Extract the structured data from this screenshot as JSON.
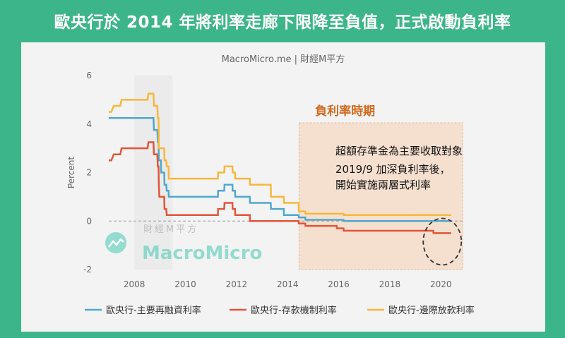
{
  "banner": {
    "title": "歐央行於 2014 年將利率走廊下限降至負值，正式啟動負利率"
  },
  "watermark": {
    "small": "財經M平方",
    "big": "MacroMicro"
  },
  "colors": {
    "background": "#3cb58a",
    "main_refinancing": "#4fa8cc",
    "deposit_facility": "#e1553a",
    "marginal_lending": "#f6b73c",
    "period_fill": "#f5d9c4",
    "period_border": "#e3b89a",
    "period_title": "#d2691e"
  },
  "chart_data": {
    "type": "line",
    "source": "MacroMicro.me | 財經M平方",
    "ylabel": "Percent",
    "xlabel": "",
    "xlim": [
      2007.0,
      2020.85
    ],
    "ylim": [
      -2,
      6
    ],
    "x_ticks": [
      2008,
      2010,
      2012,
      2014,
      2016,
      2018,
      2020
    ],
    "y_ticks": [
      -2,
      0,
      2,
      4,
      6
    ],
    "legend_position": "bottom",
    "zero_line": "dashed",
    "series": [
      {
        "name": "歐央行-主要再融資利率",
        "color_key": "main_refinancing",
        "points": [
          [
            2007.0,
            4.25
          ],
          [
            2008.75,
            4.25
          ],
          [
            2008.77,
            3.75
          ],
          [
            2008.9,
            3.75
          ],
          [
            2008.92,
            3.25
          ],
          [
            2008.95,
            3.25
          ],
          [
            2008.96,
            2.5
          ],
          [
            2009.04,
            2.5
          ],
          [
            2009.05,
            2.0
          ],
          [
            2009.17,
            2.0
          ],
          [
            2009.18,
            1.5
          ],
          [
            2009.25,
            1.5
          ],
          [
            2009.27,
            1.25
          ],
          [
            2009.34,
            1.25
          ],
          [
            2009.35,
            1.0
          ],
          [
            2011.27,
            1.0
          ],
          [
            2011.28,
            1.25
          ],
          [
            2011.52,
            1.25
          ],
          [
            2011.53,
            1.5
          ],
          [
            2011.84,
            1.5
          ],
          [
            2011.85,
            1.25
          ],
          [
            2011.94,
            1.25
          ],
          [
            2011.95,
            1.0
          ],
          [
            2012.52,
            1.0
          ],
          [
            2012.53,
            0.75
          ],
          [
            2013.34,
            0.75
          ],
          [
            2013.35,
            0.5
          ],
          [
            2013.85,
            0.5
          ],
          [
            2013.86,
            0.25
          ],
          [
            2014.43,
            0.25
          ],
          [
            2014.44,
            0.15
          ],
          [
            2014.69,
            0.15
          ],
          [
            2014.7,
            0.05
          ],
          [
            2016.19,
            0.05
          ],
          [
            2016.2,
            0.0
          ],
          [
            2020.4,
            0.0
          ]
        ]
      },
      {
        "name": "歐央行-存款機制利率",
        "color_key": "deposit_facility",
        "points": [
          [
            2007.0,
            2.5
          ],
          [
            2007.1,
            2.5
          ],
          [
            2007.2,
            2.75
          ],
          [
            2007.45,
            2.75
          ],
          [
            2007.5,
            3.0
          ],
          [
            2008.52,
            3.0
          ],
          [
            2008.55,
            3.25
          ],
          [
            2008.75,
            3.25
          ],
          [
            2008.77,
            2.75
          ],
          [
            2008.9,
            2.75
          ],
          [
            2008.92,
            2.25
          ],
          [
            2008.95,
            2.25
          ],
          [
            2008.96,
            1.5
          ],
          [
            2008.98,
            1.0
          ],
          [
            2009.04,
            1.0
          ],
          [
            2009.05,
            1.0
          ],
          [
            2009.17,
            1.0
          ],
          [
            2009.18,
            0.5
          ],
          [
            2009.25,
            0.5
          ],
          [
            2009.27,
            0.25
          ],
          [
            2011.27,
            0.25
          ],
          [
            2011.28,
            0.5
          ],
          [
            2011.52,
            0.5
          ],
          [
            2011.53,
            0.75
          ],
          [
            2011.84,
            0.75
          ],
          [
            2011.85,
            0.5
          ],
          [
            2011.94,
            0.5
          ],
          [
            2011.95,
            0.25
          ],
          [
            2012.52,
            0.25
          ],
          [
            2012.53,
            0.0
          ],
          [
            2014.43,
            0.0
          ],
          [
            2014.44,
            -0.1
          ],
          [
            2014.69,
            -0.1
          ],
          [
            2014.7,
            -0.2
          ],
          [
            2015.92,
            -0.2
          ],
          [
            2015.93,
            -0.3
          ],
          [
            2016.19,
            -0.3
          ],
          [
            2016.2,
            -0.4
          ],
          [
            2019.7,
            -0.4
          ],
          [
            2019.71,
            -0.5
          ],
          [
            2020.4,
            -0.5
          ]
        ]
      },
      {
        "name": "歐央行-邊際放款利率",
        "color_key": "marginal_lending",
        "points": [
          [
            2007.0,
            4.5
          ],
          [
            2007.1,
            4.5
          ],
          [
            2007.2,
            4.75
          ],
          [
            2007.45,
            4.75
          ],
          [
            2007.5,
            5.0
          ],
          [
            2008.52,
            5.0
          ],
          [
            2008.55,
            5.25
          ],
          [
            2008.75,
            5.25
          ],
          [
            2008.77,
            4.75
          ],
          [
            2008.9,
            4.75
          ],
          [
            2008.92,
            4.25
          ],
          [
            2008.95,
            4.25
          ],
          [
            2008.96,
            3.0
          ],
          [
            2009.17,
            3.0
          ],
          [
            2009.18,
            2.5
          ],
          [
            2009.25,
            2.5
          ],
          [
            2009.27,
            2.25
          ],
          [
            2009.34,
            2.25
          ],
          [
            2009.35,
            1.75
          ],
          [
            2011.27,
            1.75
          ],
          [
            2011.28,
            2.0
          ],
          [
            2011.52,
            2.0
          ],
          [
            2011.53,
            2.25
          ],
          [
            2011.84,
            2.25
          ],
          [
            2011.85,
            2.0
          ],
          [
            2011.94,
            2.0
          ],
          [
            2011.95,
            1.75
          ],
          [
            2012.52,
            1.75
          ],
          [
            2012.53,
            1.5
          ],
          [
            2013.34,
            1.5
          ],
          [
            2013.35,
            1.0
          ],
          [
            2013.85,
            1.0
          ],
          [
            2013.86,
            0.75
          ],
          [
            2014.43,
            0.75
          ],
          [
            2014.44,
            0.4
          ],
          [
            2014.69,
            0.4
          ],
          [
            2014.7,
            0.3
          ],
          [
            2015.92,
            0.3
          ],
          [
            2015.93,
            0.3
          ],
          [
            2016.19,
            0.3
          ],
          [
            2016.2,
            0.25
          ],
          [
            2020.4,
            0.25
          ]
        ]
      }
    ],
    "annotations": {
      "period": {
        "title": "負利率時期",
        "x_start": 2014.45,
        "x_end": 2020.85,
        "y_range": [
          -2,
          4.05
        ]
      },
      "notes": [
        "超額存準金為主要收取對象",
        "2019/9 加深負利率後，",
        "開始實施兩層式利率"
      ],
      "circle": {
        "x_center": 2020.0,
        "y_center": -0.85,
        "description": "dashed ellipse highlighting deposit rate at 2019-2020"
      }
    }
  }
}
